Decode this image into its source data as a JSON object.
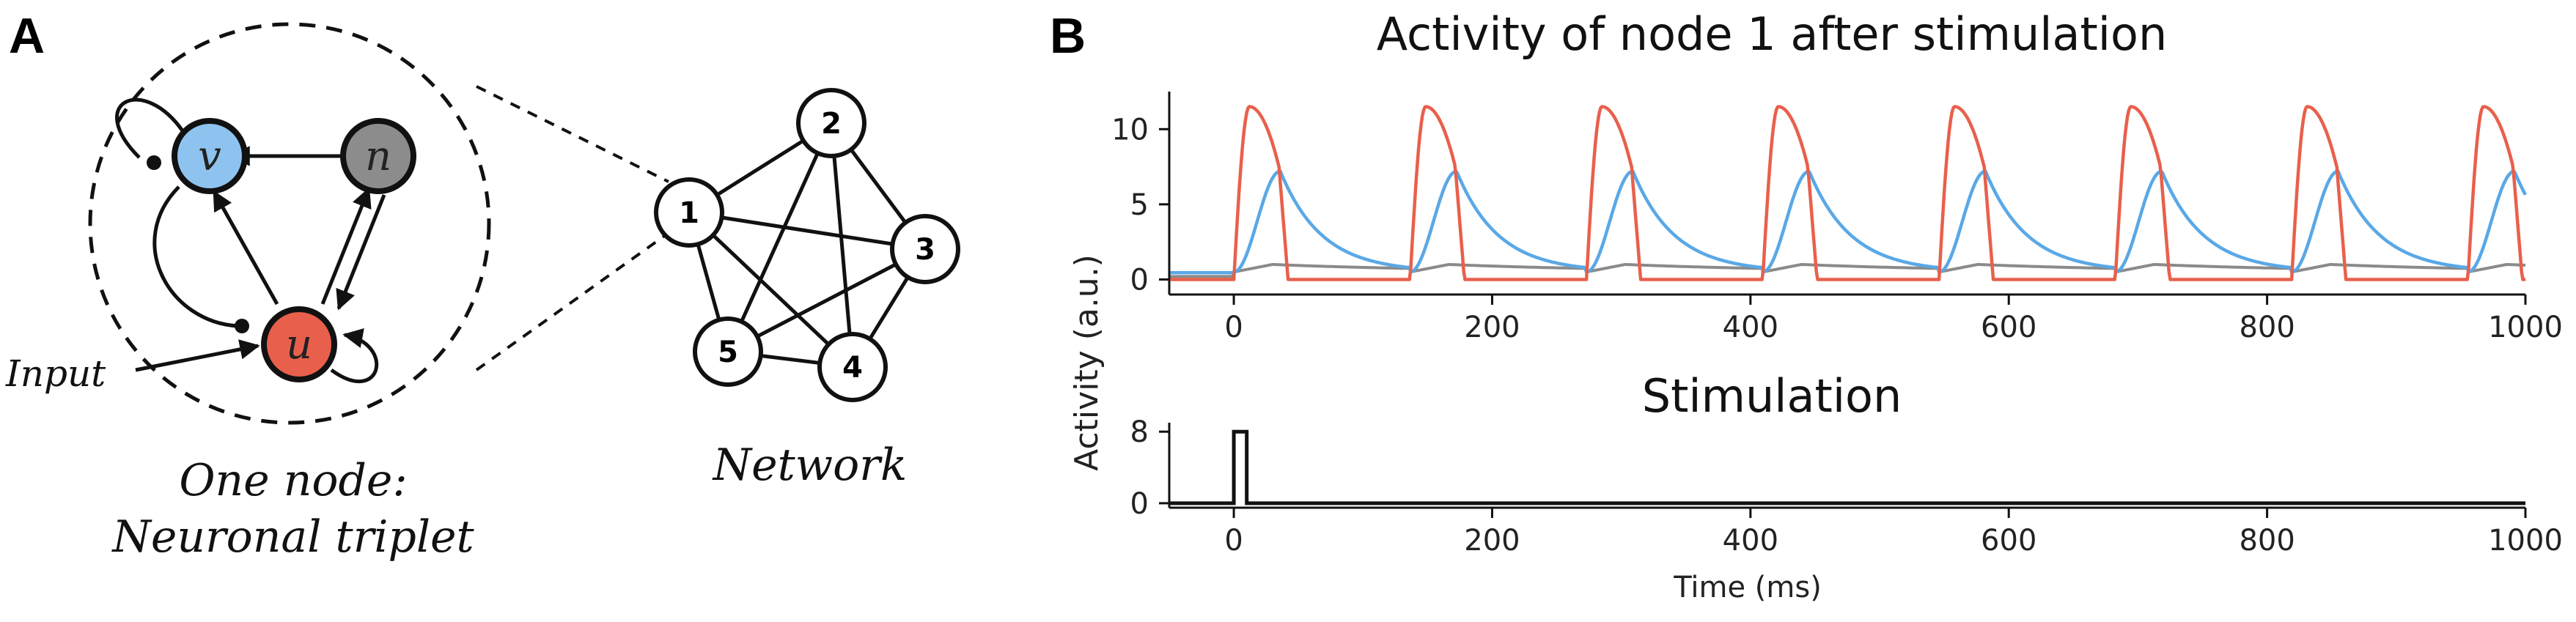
{
  "panel_a": {
    "letter": "A",
    "triplet_nodes": {
      "v": "v",
      "n": "n",
      "u": "u"
    },
    "input_label": "Input",
    "node_caption_line1": "One node:",
    "node_caption_line2": "Neuronal triplet",
    "network_caption": "Network",
    "network_nodes": [
      "1",
      "2",
      "3",
      "4",
      "5"
    ]
  },
  "panel_b": {
    "letter": "B",
    "ylabel": "Activity (a.u.)",
    "xlabel": "Time (ms)"
  },
  "colors": {
    "u": "#e8604c",
    "v": "#5aa8e6",
    "n": "#8a8a8a",
    "v_fill": "#8fc3ef",
    "n_fill": "#8c8c8c",
    "u_fill": "#e8604c"
  },
  "chart_data": [
    {
      "type": "line",
      "title": "Activity of node 1 after stimulation",
      "xlim": [
        -50,
        1000
      ],
      "ylim": [
        -1,
        12.5
      ],
      "xticks": [
        "0",
        "200",
        "400",
        "600",
        "800",
        "1000"
      ],
      "yticks": [
        "0",
        "5",
        "10"
      ],
      "burst_period_ms": 136.5,
      "series": [
        {
          "name": "u",
          "peak": 11.5,
          "baseline": 0
        },
        {
          "name": "v",
          "peak": 7.2,
          "baseline": 0.5
        },
        {
          "name": "n",
          "peak": 1.0,
          "baseline": 0.2
        }
      ]
    },
    {
      "type": "line",
      "title": "Stimulation",
      "xlim": [
        -50,
        1000
      ],
      "ylim": [
        -0.5,
        9
      ],
      "xticks": [
        "0",
        "200",
        "400",
        "600",
        "800",
        "1000"
      ],
      "yticks": [
        "0",
        "8"
      ],
      "series": [
        {
          "name": "stimulation",
          "x": [
            -50,
            0,
            0,
            10,
            10,
            1000
          ],
          "values": [
            0,
            0,
            8,
            8,
            0,
            0
          ]
        }
      ]
    }
  ]
}
